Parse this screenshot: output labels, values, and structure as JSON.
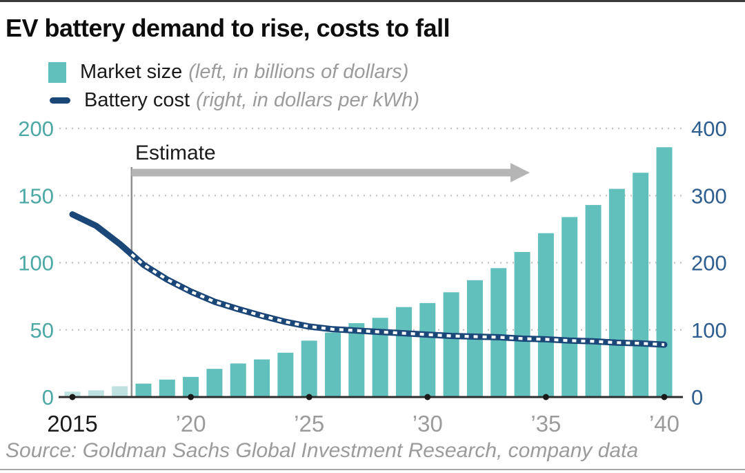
{
  "title": "EV battery demand to rise, costs to fall",
  "legend": [
    {
      "label": "Market size",
      "note": "(left, in billions of dollars)"
    },
    {
      "label": "Battery cost",
      "note": "(right, in dollars per kWh)"
    }
  ],
  "annotations": {
    "estimate_label": "Estimate"
  },
  "source": "Source: Goldman Sachs Global Investment Research, company data",
  "colors": {
    "bar": "#61c0bc",
    "bar_historical": "#bfe1e0",
    "line": "#1a4678",
    "left_axis_text": "#4ba8a4",
    "right_axis_text": "#2e5e90",
    "muted_text": "#9b9b9b",
    "dark_text": "#1a1a1a",
    "grid": "#c4c4c4",
    "axis_line": "#2e2e2e",
    "arrow": "#b5b5b5",
    "estimate_line": "#8f8f8f"
  },
  "chart_data": {
    "type": "combo bar+line",
    "x": [
      2015,
      2016,
      2017,
      2018,
      2019,
      2020,
      2021,
      2022,
      2023,
      2024,
      2025,
      2026,
      2027,
      2028,
      2029,
      2030,
      2031,
      2032,
      2033,
      2034,
      2035,
      2036,
      2037,
      2038,
      2039,
      2040
    ],
    "series": [
      {
        "name": "Market size",
        "type": "bar",
        "axis": "left",
        "unit": "billions of dollars",
        "values": [
          4,
          5,
          8,
          10,
          13,
          15,
          21,
          25,
          28,
          33,
          42,
          48,
          55,
          59,
          67,
          70,
          78,
          87,
          96,
          108,
          122,
          134,
          143,
          155,
          167,
          186
        ]
      },
      {
        "name": "Battery cost",
        "type": "line",
        "axis": "right",
        "unit": "dollars per kWh",
        "style": "solid before estimate boundary, white-dashed after",
        "values": [
          272,
          255,
          228,
          197,
          175,
          157,
          142,
          131,
          121,
          112,
          105,
          101,
          99,
          97,
          95,
          93,
          91,
          90,
          89,
          87,
          86,
          84,
          83,
          81,
          80,
          78
        ]
      }
    ],
    "left_axis": {
      "ticks": [
        0,
        50,
        100,
        150,
        200
      ],
      "range": [
        0,
        200
      ]
    },
    "right_axis": {
      "ticks": [
        0,
        100,
        200,
        300,
        400
      ],
      "range": [
        0,
        400
      ]
    },
    "x_ticks": [
      {
        "year": 2015,
        "label": "2015",
        "primary": true
      },
      {
        "year": 2020,
        "label": "’20"
      },
      {
        "year": 2025,
        "label": "’25"
      },
      {
        "year": 2030,
        "label": "’30"
      },
      {
        "year": 2035,
        "label": "’35"
      },
      {
        "year": 2040,
        "label": "’40"
      }
    ],
    "estimate_boundary": 2017.5,
    "bar_estimate_from": 2018,
    "grid": true,
    "legend_position": "top-left"
  }
}
